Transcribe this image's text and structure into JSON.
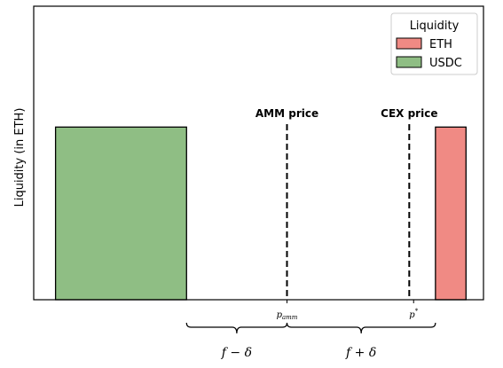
{
  "chart_data": {
    "type": "bar",
    "ylabel": "Liquidity (in ETH)",
    "xlabel": "",
    "title": "",
    "legend": {
      "title": "Liquidity",
      "placement": "top-right",
      "entries": [
        {
          "name": "ETH",
          "color": "#f08a84"
        },
        {
          "name": "USDC",
          "color": "#8fbe84"
        }
      ]
    },
    "series": [
      {
        "name": "USDC",
        "color": "#8fbe84",
        "x_start": 0.1,
        "x_end": 1.6,
        "value": 1
      },
      {
        "name": "ETH",
        "color": "#f08a84",
        "x_start": 4.45,
        "x_end": 4.8,
        "value": 1
      }
    ],
    "xlim": [
      -0.15,
      5.0
    ],
    "ylim": [
      0,
      1.7
    ],
    "grid": false,
    "ticks": [
      {
        "x": 2.75,
        "base": "p",
        "sub": "amm",
        "sup": ""
      },
      {
        "x": 4.2,
        "base": "p",
        "sub": "",
        "sup": "*"
      }
    ],
    "vlines": [
      {
        "x": 2.75,
        "label": "AMM price",
        "style": "dashed"
      },
      {
        "x": 4.15,
        "label": "CEX price",
        "style": "dashed"
      }
    ],
    "braces": [
      {
        "from": 1.6,
        "to": 2.75,
        "label": "f − δ"
      },
      {
        "from": 2.75,
        "to": 4.45,
        "label": "f + δ"
      }
    ]
  }
}
